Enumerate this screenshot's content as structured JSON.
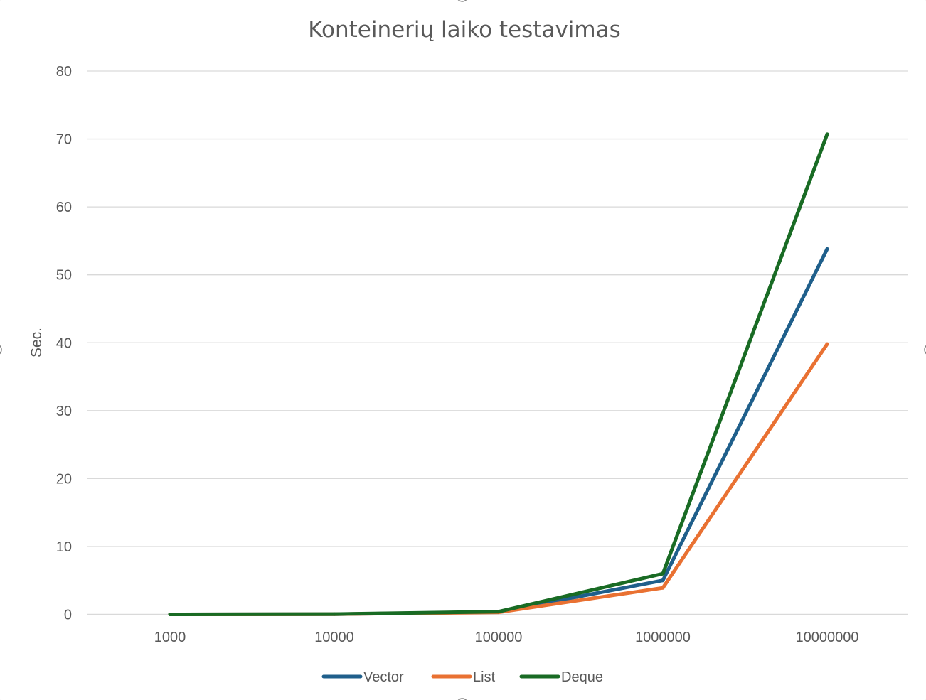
{
  "chart_data": {
    "type": "line",
    "title": "Konteinerių laiko testavimas",
    "xlabel": "",
    "ylabel": "Sec.",
    "categories": [
      "1000",
      "10000",
      "100000",
      "1000000",
      "10000000"
    ],
    "ylim": [
      0,
      80
    ],
    "yticks": [
      0,
      10,
      20,
      30,
      40,
      50,
      60,
      70,
      80
    ],
    "ytick_labels": [
      "0",
      "10",
      "20",
      "30",
      "40",
      "50",
      "60",
      "70",
      "80"
    ],
    "grid": true,
    "legend_position": "bottom",
    "series": [
      {
        "name": "Vector",
        "color": "#1f5f8b",
        "values": [
          0.0,
          0.03,
          0.35,
          5.0,
          53.8
        ]
      },
      {
        "name": "List",
        "color": "#e97132",
        "values": [
          0.0,
          0.03,
          0.3,
          3.9,
          39.8
        ]
      },
      {
        "name": "Deque",
        "color": "#196b24",
        "values": [
          0.0,
          0.04,
          0.4,
          6.0,
          70.7
        ]
      }
    ]
  }
}
